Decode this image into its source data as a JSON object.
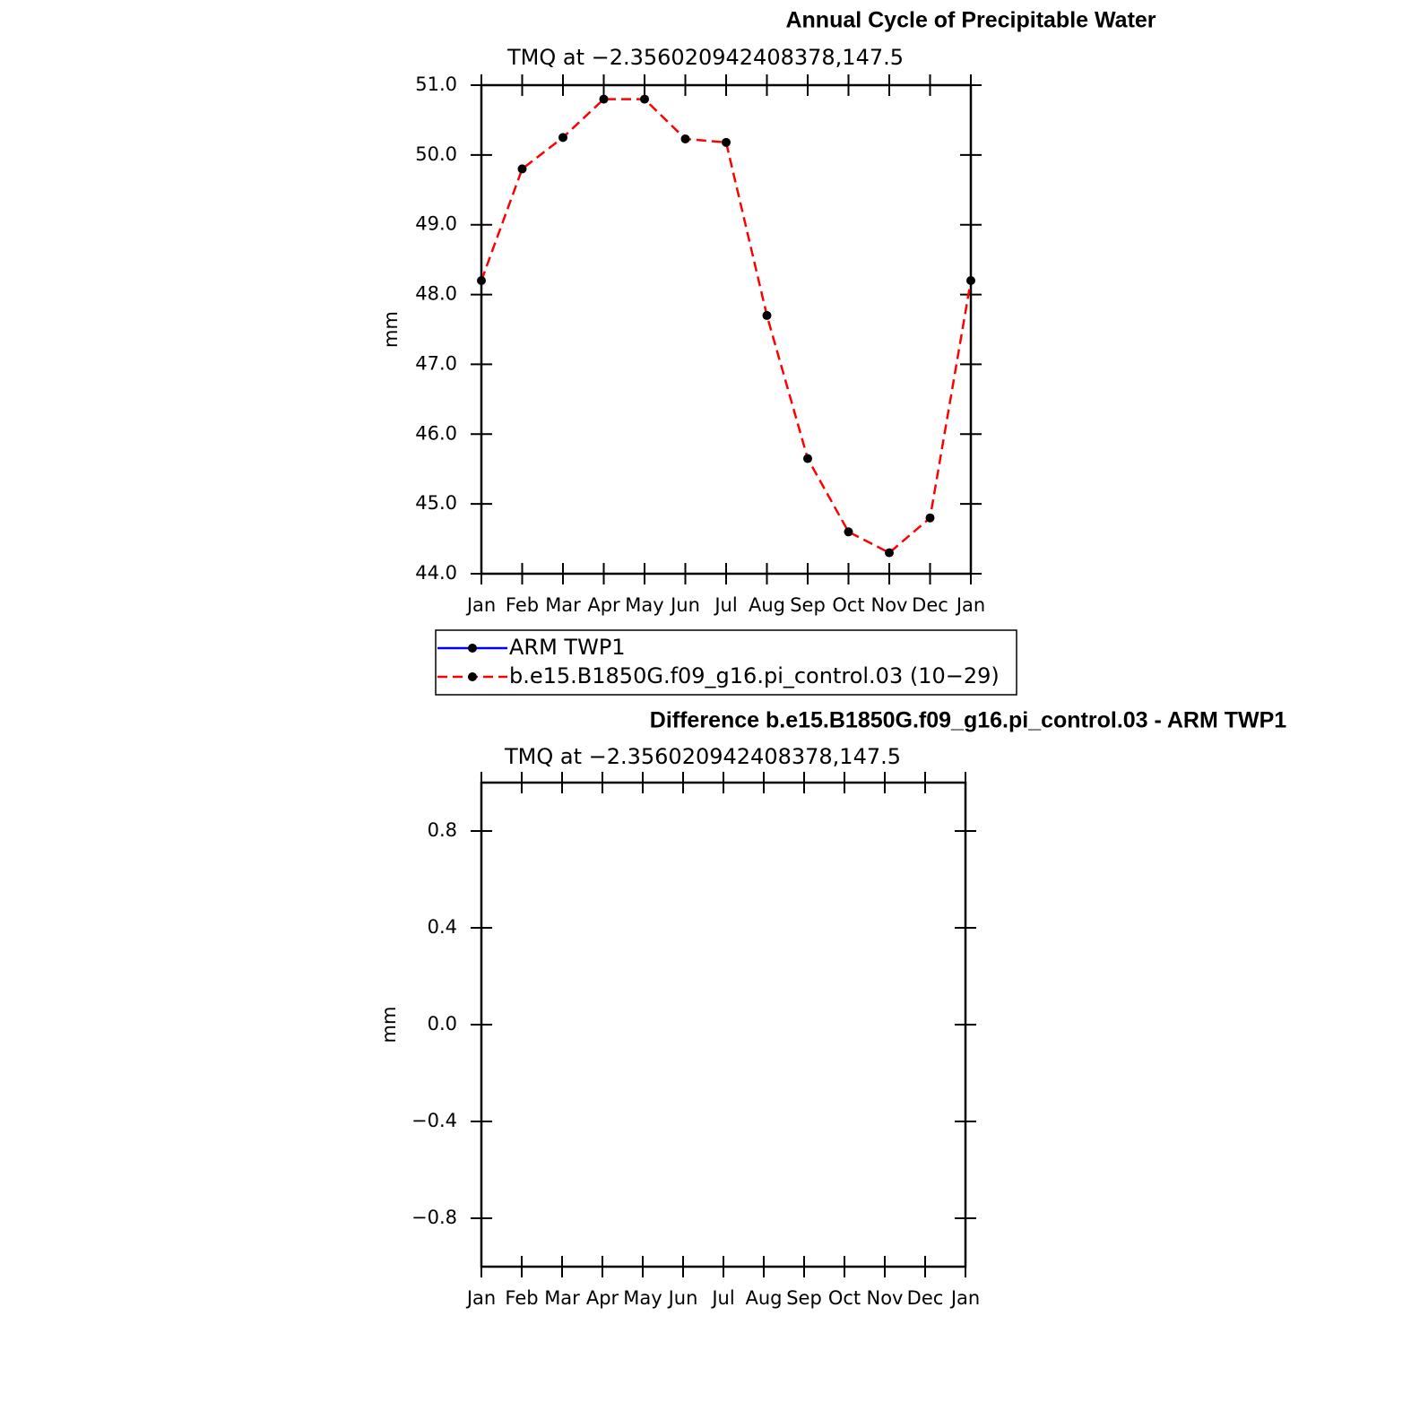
{
  "chart_data": [
    {
      "type": "line",
      "title": "Annual Cycle of Precipitable Water",
      "subtitle": "TMQ at −2.356020942408378,147.5",
      "y_label": "mm",
      "categories": [
        "Jan",
        "Feb",
        "Mar",
        "Apr",
        "May",
        "Jun",
        "Jul",
        "Aug",
        "Sep",
        "Oct",
        "Nov",
        "Dec",
        "Jan"
      ],
      "series": [
        {
          "name": "ARM TWP1",
          "color": "#0000ff",
          "linestyle": "solid",
          "marker": "dot",
          "values": [
            null,
            null,
            null,
            null,
            null,
            null,
            null,
            null,
            null,
            null,
            null,
            null,
            null
          ]
        },
        {
          "name": "b.e15.B1850G.f09_g16.pi_control.03 (10−29)",
          "color": "#ff0000",
          "linestyle": "dashed",
          "marker": "dot",
          "values": [
            48.2,
            49.8,
            50.25,
            50.8,
            50.8,
            50.23,
            50.18,
            47.7,
            45.65,
            44.6,
            44.3,
            44.8,
            48.2
          ]
        }
      ],
      "ylim": [
        44,
        51
      ],
      "yticks": [
        {
          "value": 44,
          "label": "44.0"
        },
        {
          "value": 45,
          "label": "45.0"
        },
        {
          "value": 46,
          "label": "46.0"
        },
        {
          "value": 47,
          "label": "47.0"
        },
        {
          "value": 48,
          "label": "48.0"
        },
        {
          "value": 49,
          "label": "49.0"
        },
        {
          "value": 50,
          "label": "50.0"
        },
        {
          "value": 51,
          "label": "51.0"
        }
      ],
      "legend": "bottom"
    },
    {
      "type": "line",
      "title": "Difference b.e15.B1850G.f09_g16.pi_control.03 - ARM TWP1",
      "subtitle": "TMQ at −2.356020942408378,147.5",
      "y_label": "mm",
      "categories": [
        "Jan",
        "Feb",
        "Mar",
        "Apr",
        "May",
        "Jun",
        "Jul",
        "Aug",
        "Sep",
        "Oct",
        "Nov",
        "Dec",
        "Jan"
      ],
      "values": [
        null,
        null,
        null,
        null,
        null,
        null,
        null,
        null,
        null,
        null,
        null,
        null,
        null
      ],
      "ylim": [
        -1,
        1
      ],
      "yticks": [
        {
          "value": -0.8,
          "label": "−0.8"
        },
        {
          "value": -0.4,
          "label": "−0.4"
        },
        {
          "value": 0,
          "label": "0.0"
        },
        0.4,
        0.8
      ]
    }
  ]
}
